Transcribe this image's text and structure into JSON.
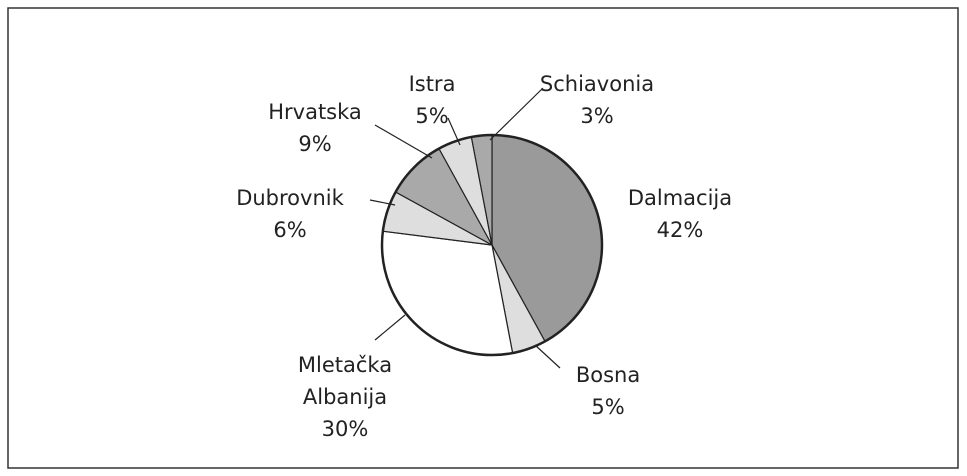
{
  "chart_data": {
    "type": "pie",
    "categories": [
      "Dalmacija",
      "Bosna",
      "Mletačka Albanija",
      "Dubrovnik",
      "Hrvatska",
      "Istra",
      "Schiavonia"
    ],
    "values": [
      42,
      5,
      30,
      6,
      9,
      5,
      3
    ],
    "value_labels": [
      "42%",
      "5%",
      "30%",
      "6%",
      "9%",
      "5%",
      "3%"
    ],
    "colors": [
      "#9a9a9a",
      "#dedede",
      "#ffffff",
      "#dedede",
      "#a9a9a9",
      "#dedede",
      "#a9a9a9"
    ]
  }
}
